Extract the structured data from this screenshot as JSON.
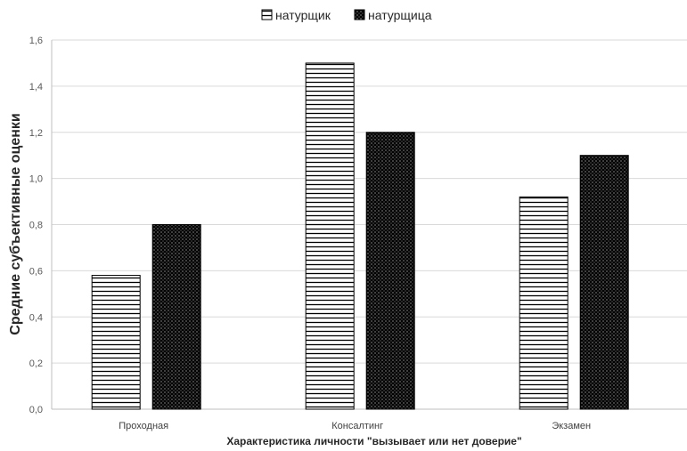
{
  "chart_data": {
    "type": "bar",
    "categories": [
      "Проходная",
      "Консалтинг",
      "Экзамен"
    ],
    "series": [
      {
        "name": "натурщик",
        "values": [
          0.58,
          1.5,
          0.92
        ],
        "pattern": "horizontal-lines"
      },
      {
        "name": "натурщица",
        "values": [
          0.8,
          1.2,
          1.1
        ],
        "pattern": "dotted-dark"
      }
    ],
    "xlabel": "Характеристика личности \"вызывает или нет доверие\"",
    "ylabel": "Средние субъективные оценки",
    "ylim": [
      0,
      1.6
    ],
    "yticks": [
      "0,0",
      "0,2",
      "0,4",
      "0,6",
      "0,8",
      "1,0",
      "1,2",
      "1,4",
      "1,6"
    ],
    "grid": true,
    "legend": "top-center"
  }
}
